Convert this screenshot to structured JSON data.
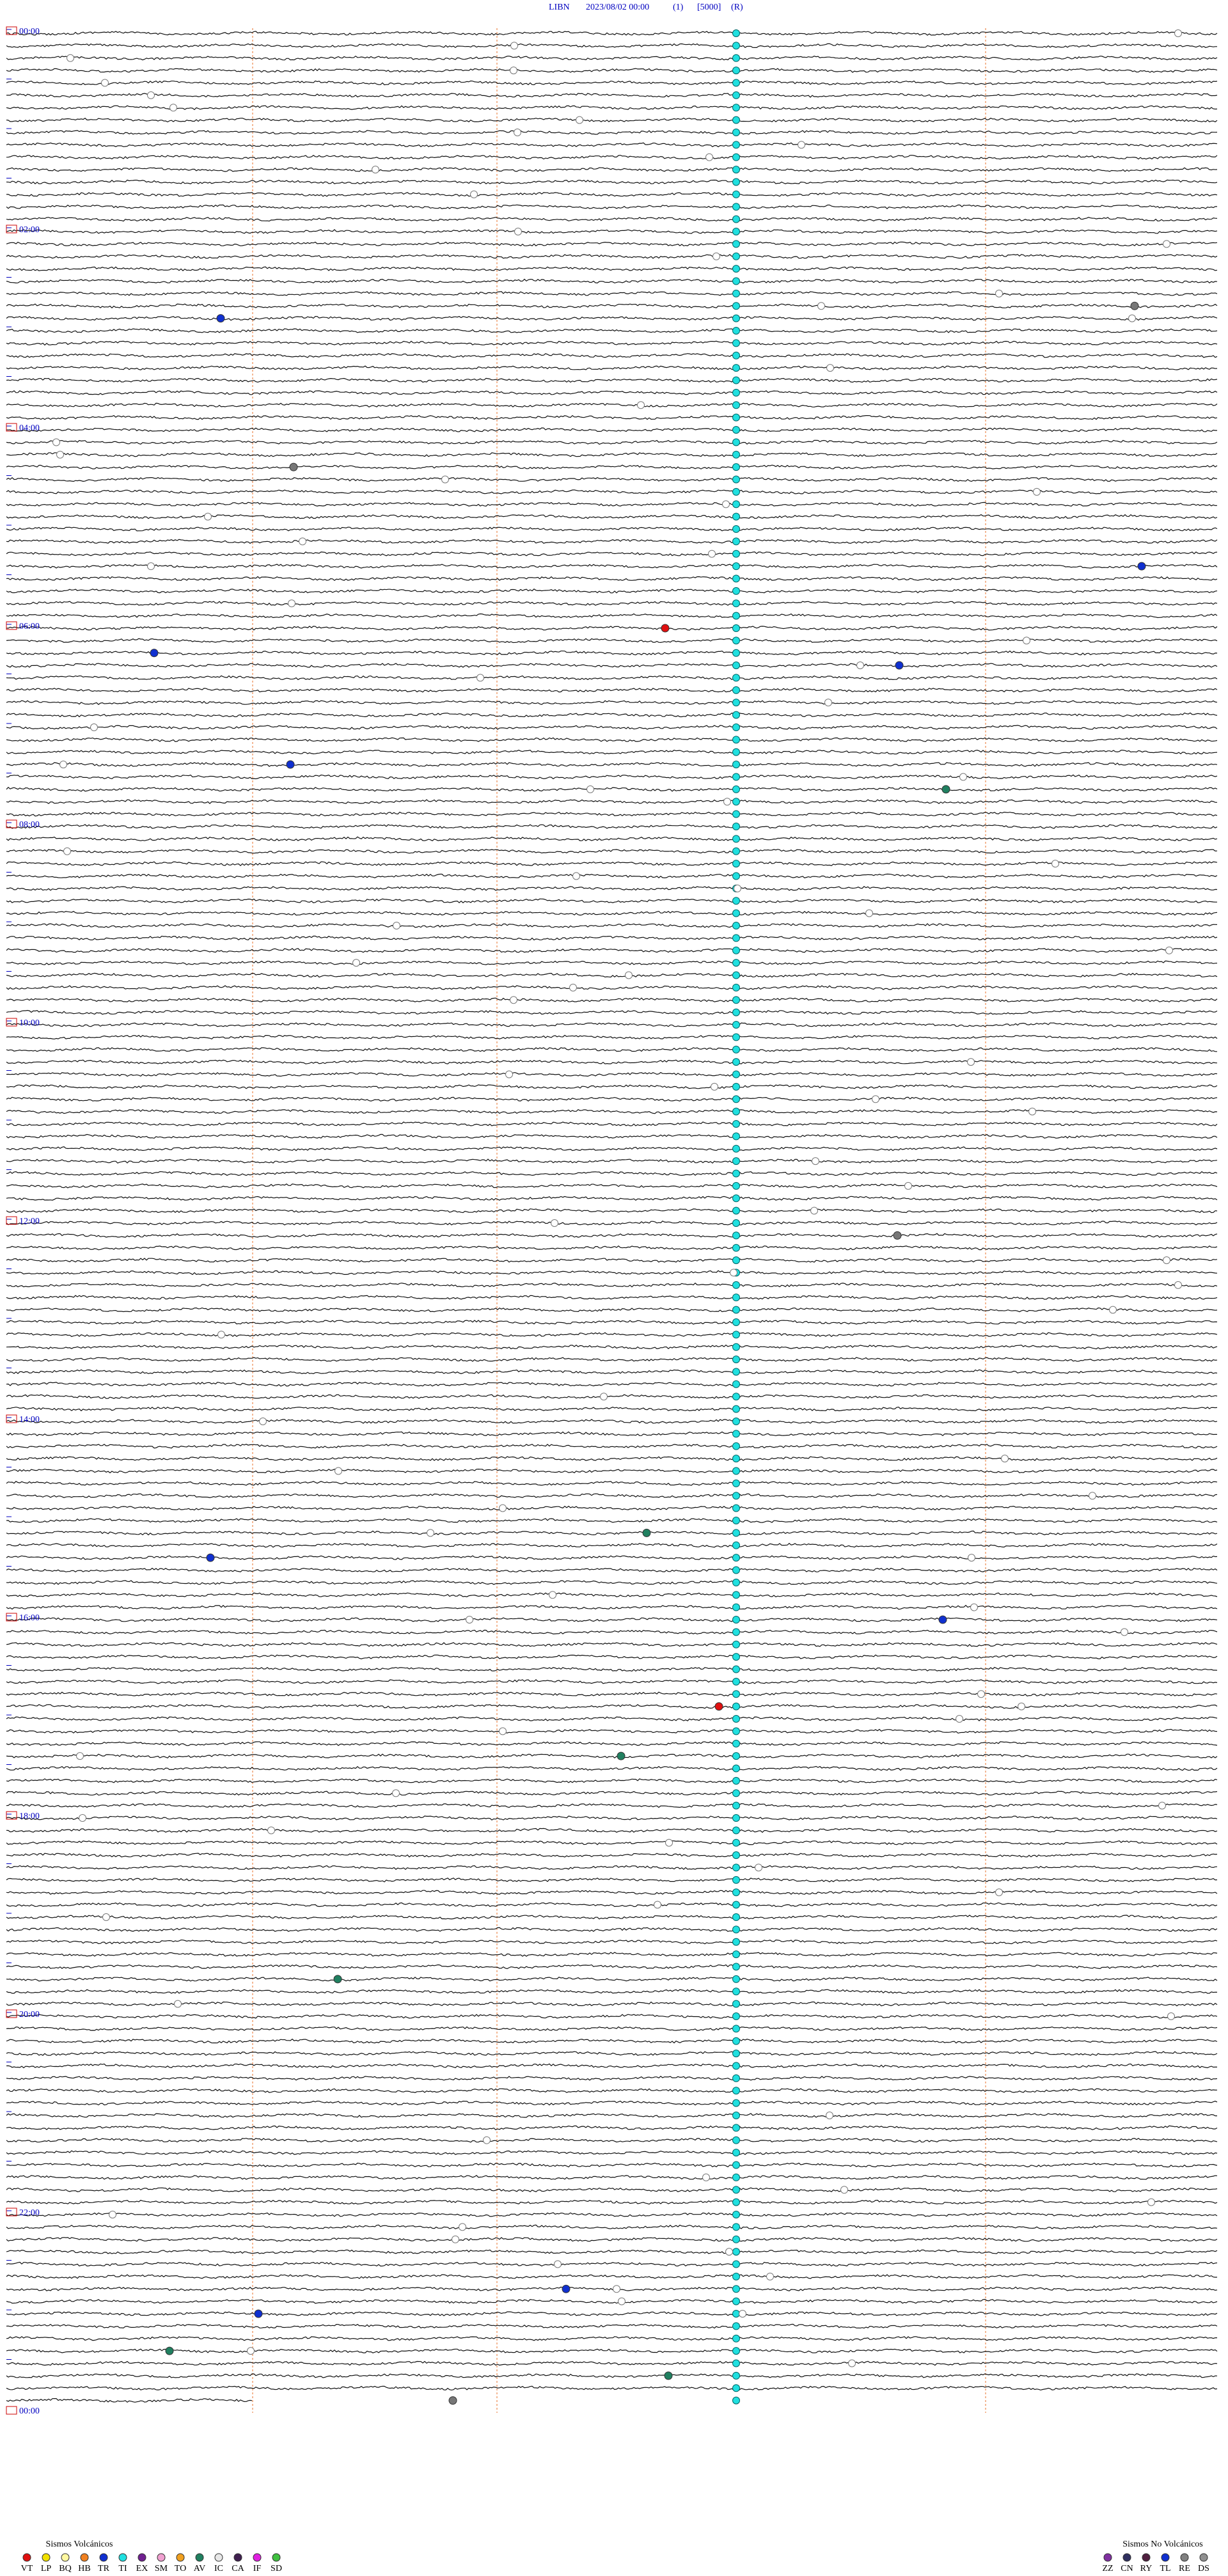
{
  "header": {
    "station": "LIBN",
    "datetime": "2023/08/02 00:00",
    "channel": "(1)",
    "scale": "[5000]",
    "mode": "(R)"
  },
  "time_labels": [
    "00:00",
    "02:00",
    "04:00",
    "06:00",
    "08:00",
    "10:00",
    "12:00",
    "14:00",
    "16:00",
    "18:00",
    "20:00",
    "22:00",
    "00:00"
  ],
  "legend": {
    "volcanic": {
      "title": "Sismos Volcánicos",
      "types": [
        {
          "code": "VT",
          "color": "#e01010"
        },
        {
          "code": "LP",
          "color": "#f0e000"
        },
        {
          "code": "BQ",
          "color": "#fff8a0"
        },
        {
          "code": "HB",
          "color": "#f08020"
        },
        {
          "code": "TR",
          "color": "#1030d0"
        },
        {
          "code": "TI",
          "color": "#20e0e0"
        },
        {
          "code": "EX",
          "color": "#702090"
        },
        {
          "code": "SM",
          "color": "#f0a0d0"
        },
        {
          "code": "TO",
          "color": "#f0a020"
        },
        {
          "code": "AV",
          "color": "#208060"
        },
        {
          "code": "IC",
          "color": "#e8e8e8"
        },
        {
          "code": "CA",
          "color": "#402050"
        },
        {
          "code": "IF",
          "color": "#e020e0"
        },
        {
          "code": "SD",
          "color": "#40c040"
        }
      ]
    },
    "non_volcanic": {
      "title": "Sismos No Volcánicos",
      "types": [
        {
          "code": "ZZ",
          "color": "#8030a0"
        },
        {
          "code": "CN",
          "color": "#303060"
        },
        {
          "code": "RY",
          "color": "#502040"
        },
        {
          "code": "TL",
          "color": "#1030d0"
        },
        {
          "code": "RE",
          "color": "#808080"
        },
        {
          "code": "DS",
          "color": "#909090"
        }
      ]
    }
  }
}
